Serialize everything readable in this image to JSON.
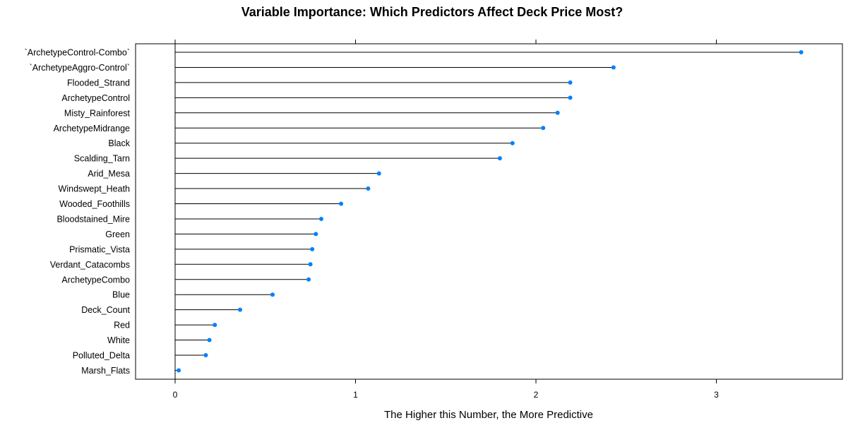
{
  "chart_data": {
    "type": "dot",
    "title": "Variable Importance: Which Predictors Affect Deck Price Most?",
    "xlabel": "The Higher this Number, the More Predictive",
    "ylabel": "",
    "xlim": [
      -0.22,
      3.72
    ],
    "xticks": [
      0,
      1,
      2,
      3
    ],
    "tick_labels": [
      "0",
      "1",
      "2",
      "3"
    ],
    "grid": false,
    "point_color": "#0080ff",
    "line_color": "#000000",
    "categories": [
      "`ArchetypeControl-Combo`",
      "`ArchetypeAggro-Control`",
      "Flooded_Strand",
      "ArchetypeControl",
      "Misty_Rainforest",
      "ArchetypeMidrange",
      "Black",
      "Scalding_Tarn",
      "Arid_Mesa",
      "Windswept_Heath",
      "Wooded_Foothills",
      "Bloodstained_Mire",
      "Green",
      "Prismatic_Vista",
      "Verdant_Catacombs",
      "ArchetypeCombo",
      "Blue",
      "Deck_Count",
      "Red",
      "White",
      "Polluted_Delta",
      "Marsh_Flats"
    ],
    "values": [
      3.47,
      2.43,
      2.19,
      2.19,
      2.12,
      2.04,
      1.87,
      1.8,
      1.13,
      1.07,
      0.92,
      0.81,
      0.78,
      0.76,
      0.75,
      0.74,
      0.54,
      0.36,
      0.22,
      0.19,
      0.17,
      0.02
    ]
  }
}
